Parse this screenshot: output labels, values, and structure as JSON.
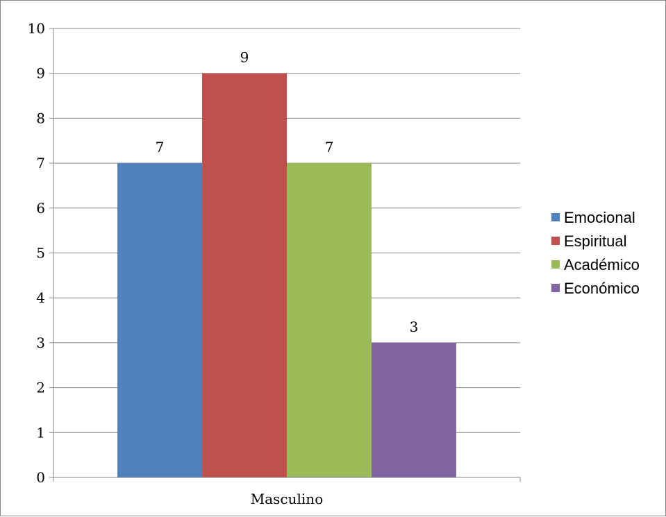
{
  "chart_data": {
    "type": "bar",
    "categories": [
      "Masculino"
    ],
    "series": [
      {
        "name": "Emocional",
        "values": [
          7
        ],
        "color": "#4F81BD"
      },
      {
        "name": "Espiritual",
        "values": [
          9
        ],
        "color": "#C0504D"
      },
      {
        "name": "Académico",
        "values": [
          7
        ],
        "color": "#9BBB59"
      },
      {
        "name": "Económico",
        "values": [
          3
        ],
        "color": "#8064A2"
      }
    ],
    "yticks": [
      "0",
      "1",
      "2",
      "3",
      "4",
      "5",
      "6",
      "7",
      "8",
      "9",
      "10"
    ],
    "ylim": [
      0,
      10
    ],
    "grid": true,
    "legend_position": "right",
    "data_labels": true
  }
}
